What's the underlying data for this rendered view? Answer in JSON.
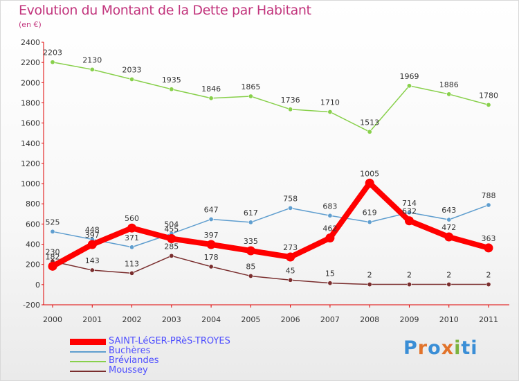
{
  "title": "Evolution du Montant de la Dette par Habitant",
  "subtitle": "(en €)",
  "brand": [
    "P",
    "r",
    "o",
    "x",
    "i",
    "ti"
  ],
  "chart_data": {
    "type": "line",
    "x": [
      "2000",
      "2001",
      "2002",
      "2003",
      "2004",
      "2005",
      "2006",
      "2007",
      "2008",
      "2009",
      "2010",
      "2011"
    ],
    "ylim": [
      -200,
      2400
    ],
    "yticks": [
      "-200",
      "0",
      "200",
      "400",
      "600",
      "800",
      "1000",
      "1200",
      "1400",
      "1600",
      "1800",
      "2000",
      "2200",
      "2400"
    ],
    "grid": false,
    "legend_position": "bottom-left",
    "series": [
      {
        "name": "Bréviandes",
        "color": "#88d04b",
        "values": [
          2203,
          2130,
          2033,
          1935,
          1846,
          1865,
          1736,
          1710,
          1513,
          1969,
          1886,
          1780
        ],
        "labels": [
          "2203",
          "2130",
          "2033",
          "1935",
          "1846",
          "1865",
          "1736",
          "1710",
          "1513",
          "1969",
          "1886",
          "1780"
        ]
      },
      {
        "name": "Buchères",
        "color": "#5f9ecf",
        "values": [
          525,
          448,
          371,
          504,
          647,
          617,
          758,
          683,
          619,
          714,
          643,
          788
        ],
        "labels": [
          "525",
          "448",
          "371",
          "504",
          "647",
          "617",
          "758",
          "683",
          "619",
          "714",
          "643",
          "788"
        ]
      },
      {
        "name": "Moussey",
        "color": "#7a2e2e",
        "values": [
          230,
          143,
          113,
          285,
          178,
          85,
          45,
          15,
          2,
          2,
          2,
          2
        ],
        "labels": [
          "230",
          "143",
          "113",
          "285",
          "178",
          "85",
          "45",
          "15",
          "2",
          "2",
          "2",
          "2"
        ]
      },
      {
        "name": "SAINT-LéGER-PRèS-TROYES",
        "color": "#ff0000",
        "values": [
          182,
          397,
          560,
          455,
          397,
          335,
          273,
          462,
          1005,
          632,
          472,
          363
        ],
        "labels": [
          "182",
          "397",
          "560",
          "455",
          "397",
          "335",
          "273",
          "462",
          "1005",
          "632",
          "472",
          "363"
        ]
      }
    ],
    "legend": [
      {
        "name": "SAINT-LéGER-PRèS-TROYES",
        "color": "#ff0000"
      },
      {
        "name": "Buchères",
        "color": "#5f9ecf"
      },
      {
        "name": "Bréviandes",
        "color": "#88d04b"
      },
      {
        "name": "Moussey",
        "color": "#7a2e2e"
      }
    ]
  }
}
